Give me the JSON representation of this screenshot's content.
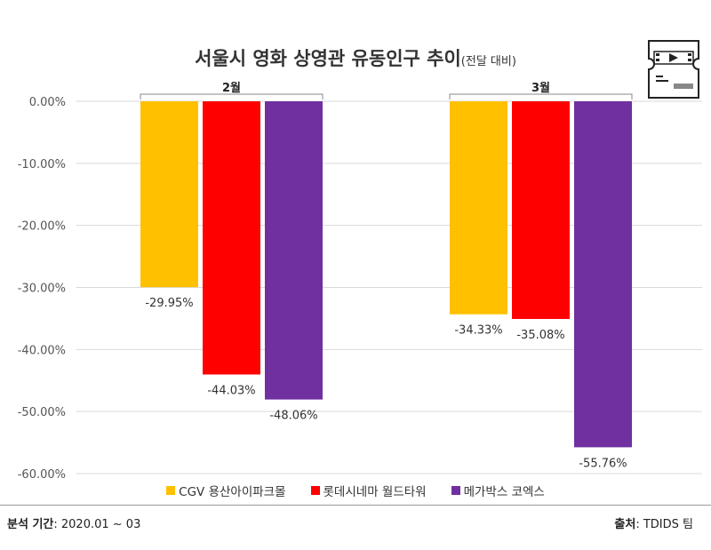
{
  "title": "서울시 영화 상영관 유동인구 추이",
  "subtitle": "(전달 대비)",
  "footer": {
    "period_label": "분석 기간",
    "period_value": ": 2020.01 ~ 03",
    "source_label": "출처",
    "source_value": ": TDIDS 팀"
  },
  "icon": "movie-ticket-icon",
  "chart_data": {
    "type": "bar",
    "categories": [
      "2월",
      "3월"
    ],
    "series": [
      {
        "name": "CGV 용산아이파크몰",
        "color": "#FFC000",
        "values": [
          -29.95,
          -34.33
        ],
        "labels": [
          "-29.95%",
          "-34.33%"
        ]
      },
      {
        "name": "롯데시네마 월드타워",
        "color": "#FF0000",
        "values": [
          -44.03,
          -35.08
        ],
        "labels": [
          "-44.03%",
          "-35.08%"
        ]
      },
      {
        "name": "메가박스 코엑스",
        "color": "#7030A0",
        "values": [
          -48.06,
          -55.76
        ],
        "labels": [
          "-48.06%",
          "-55.76%"
        ]
      }
    ],
    "ylim": [
      -60,
      0
    ],
    "yticks": [
      0,
      -10,
      -20,
      -30,
      -40,
      -50,
      -60
    ],
    "ytick_labels": [
      "0.00%",
      "-10.00%",
      "-20.00%",
      "-30.00%",
      "-40.00%",
      "-50.00%",
      "-60.00%"
    ],
    "grid": true,
    "legend_position": "bottom"
  }
}
